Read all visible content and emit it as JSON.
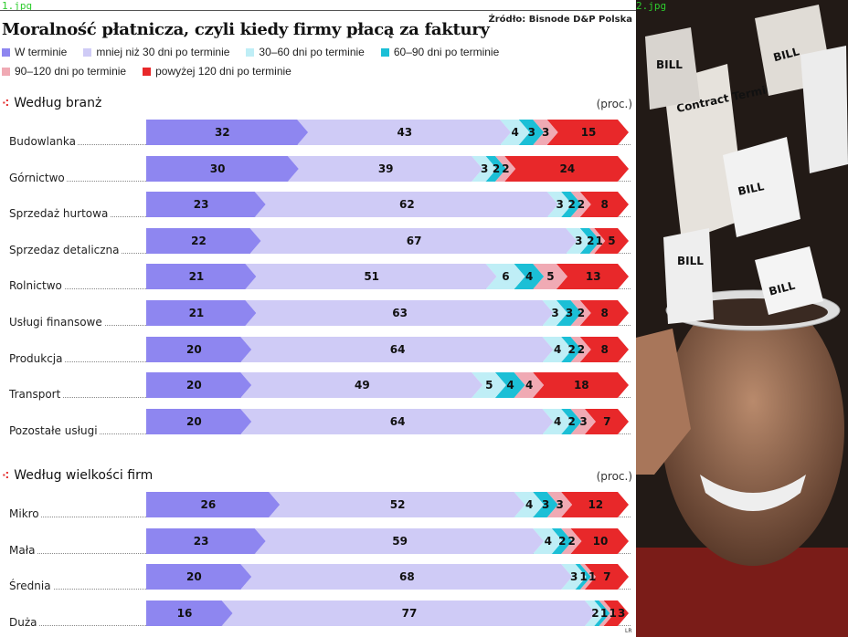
{
  "files": [
    "1.jpg",
    "2.jpg"
  ],
  "chart_data": {
    "type": "bar",
    "stacked": true,
    "orientation": "horizontal",
    "title": "Moralność płatnicza, czyli kiedy firmy płacą za faktury",
    "source": "Źródło: Bisnode D&P Polska",
    "unit": "(proc.)",
    "series": [
      {
        "name": "W terminie",
        "color": "#8e86f0"
      },
      {
        "name": "mniej niż 30 dni po terminie",
        "color": "#cfcbf6"
      },
      {
        "name": "30–60 dni po terminie",
        "color": "#bfeef6"
      },
      {
        "name": "60–90 dni po terminie",
        "color": "#1bbfd6"
      },
      {
        "name": "90–120 dni po terminie",
        "color": "#f0aab4"
      },
      {
        "name": "powyżej 120 dni po terminie",
        "color": "#e8282a"
      }
    ],
    "groups": [
      {
        "title": "Według branż",
        "rows": [
          {
            "label": "Budowlanka",
            "values": [
              32,
              43,
              4,
              3,
              3,
              15
            ]
          },
          {
            "label": "Górnictwo",
            "values": [
              30,
              39,
              3,
              2,
              2,
              24
            ]
          },
          {
            "label": "Sprzedaż hurtowa",
            "values": [
              23,
              62,
              3,
              2,
              2,
              8
            ]
          },
          {
            "label": "Sprzedaz detaliczna",
            "values": [
              22,
              67,
              3,
              2,
              1,
              5
            ]
          },
          {
            "label": "Rolnictwo",
            "values": [
              21,
              51,
              6,
              4,
              5,
              13
            ]
          },
          {
            "label": "Usługi finansowe",
            "values": [
              21,
              63,
              3,
              3,
              2,
              8
            ]
          },
          {
            "label": "Produkcja",
            "values": [
              20,
              64,
              4,
              2,
              2,
              8
            ]
          },
          {
            "label": "Transport",
            "values": [
              20,
              49,
              5,
              4,
              4,
              18
            ]
          },
          {
            "label": "Pozostałe usługi",
            "values": [
              20,
              64,
              4,
              2,
              3,
              7
            ]
          }
        ]
      },
      {
        "title": "Według wielkości firm",
        "rows": [
          {
            "label": "Mikro",
            "values": [
              26,
              52,
              4,
              3,
              3,
              12
            ]
          },
          {
            "label": "Mała",
            "values": [
              23,
              59,
              4,
              2,
              2,
              10
            ]
          },
          {
            "label": "Średnia",
            "values": [
              20,
              68,
              3,
              1,
              1,
              7
            ]
          },
          {
            "label": "Duża",
            "values": [
              16,
              77,
              2,
              1,
              1,
              3
            ]
          }
        ]
      }
    ],
    "xlim": [
      0,
      100
    ]
  },
  "credit": "LR",
  "photo": {
    "papers": [
      "BILL",
      "BILL",
      "BILL",
      "BILL",
      "BILL",
      "Contract Termination"
    ]
  }
}
